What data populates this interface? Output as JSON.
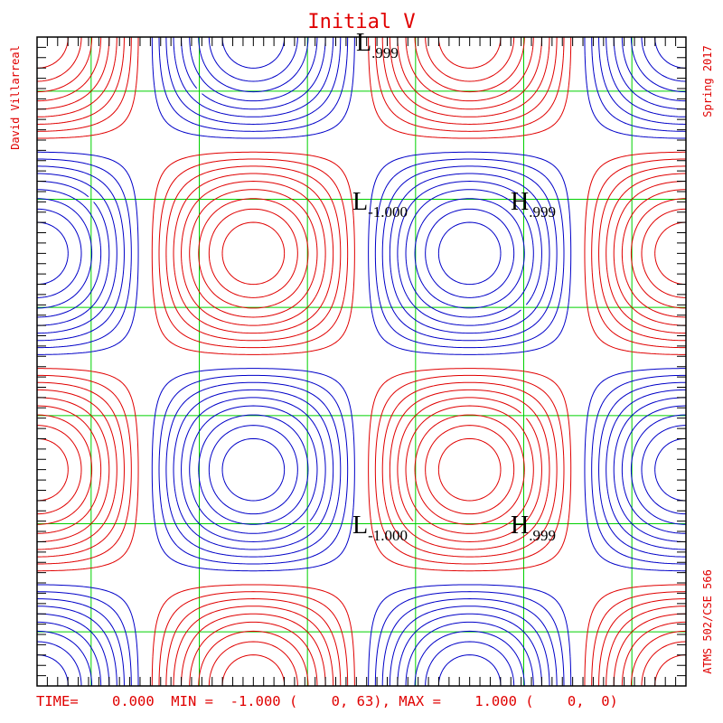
{
  "chart_data": {
    "type": "contour",
    "title": "Initial V",
    "author": "David Villarreal",
    "term": "Spring 2017",
    "course": "ATMS 502/CSE 566",
    "footer": "TIME=    0.000  MIN =  -1.000 (    0, 63), MAX =    1.000 (    0,  0)",
    "time": 0.0,
    "min": {
      "value": -1.0,
      "i": 0,
      "j": 63
    },
    "max": {
      "value": 1.0,
      "i": 0,
      "j": 0
    },
    "field": "sin(3πx/2)·sin(3πy/2)",
    "contour_levels": [
      -0.9,
      -0.8,
      -0.7,
      -0.6,
      -0.5,
      -0.4,
      -0.3,
      -0.2,
      -0.1,
      0.1,
      0.2,
      0.3,
      0.4,
      0.5,
      0.6,
      0.7,
      0.8,
      0.9
    ],
    "grid_on": true,
    "colors": {
      "positive": "#e00000",
      "negative": "#0000c8",
      "grid": "#00d000",
      "frame": "#000000",
      "text": "#e00000"
    },
    "extrema_labels": [
      {
        "letter": "L",
        "value": ".999",
        "note": "top edge (partially clipped)"
      },
      {
        "letter": "L",
        "value": "-1.000"
      },
      {
        "letter": "H",
        "value": ".999"
      },
      {
        "letter": "L",
        "value": "-1.000"
      },
      {
        "letter": "H",
        "value": ".999"
      }
    ]
  }
}
